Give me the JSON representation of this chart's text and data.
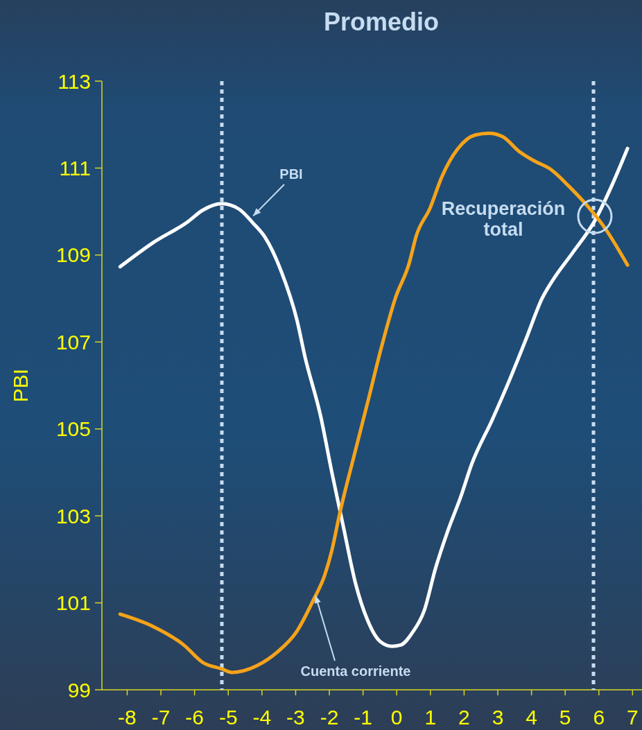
{
  "chart_data": {
    "type": "line",
    "title": "Promedio",
    "ylabel": "PBI",
    "xlim": [
      -8.75,
      7.28
    ],
    "xticks": [
      -8,
      -7,
      -6,
      -5,
      -4,
      -3,
      -2,
      -1,
      0,
      1,
      2,
      3,
      4,
      5,
      6,
      7
    ],
    "ylim": [
      99,
      113
    ],
    "yticks": [
      99,
      101,
      103,
      105,
      107,
      109,
      111,
      113
    ],
    "grid": false,
    "marker": "none",
    "line_style": "solid",
    "series": [
      {
        "color": "#ffffff",
        "x": [
          -8.21,
          -7.24,
          -6.21,
          -5.76,
          -5.19,
          -4.67,
          -4.26,
          -3.91,
          -3.44,
          -2.96,
          -2.72,
          -2.26,
          -1.93,
          -1.58,
          -1.23,
          -0.86,
          -0.49,
          -0.14,
          0.12,
          0.47,
          0.82,
          1.15,
          1.5,
          1.91,
          2.22,
          2.84,
          3.35,
          3.83,
          4.32,
          4.69,
          5.21,
          5.88,
          6.38,
          6.85
        ],
        "values": [
          108.73,
          109.28,
          109.76,
          110.03,
          110.18,
          110.05,
          109.73,
          109.41,
          108.65,
          107.5,
          106.65,
          105.3,
          104.02,
          102.74,
          101.47,
          100.59,
          100.11,
          100.0,
          100.03,
          100.32,
          100.83,
          101.79,
          102.62,
          103.46,
          104.18,
          105.22,
          106.13,
          107.05,
          108.01,
          108.49,
          109.04,
          109.79,
          110.59,
          111.45
        ]
      },
      {
        "color": "#f5a31a",
        "x": [
          -8.21,
          -7.24,
          -6.32,
          -5.76,
          -5.19,
          -4.88,
          -4.16,
          -3.54,
          -2.96,
          -2.47,
          -2.14,
          -1.93,
          -1.69,
          -1.28,
          -0.86,
          -0.45,
          -0.04,
          0.37,
          0.58,
          0.99,
          1.34,
          1.81,
          2.33,
          2.74,
          3.15,
          3.62,
          4.07,
          4.59,
          5.1,
          5.68,
          6.17,
          6.85
        ],
        "values": [
          100.74,
          100.46,
          100.03,
          99.63,
          99.48,
          99.4,
          99.55,
          99.87,
          100.35,
          101.07,
          101.63,
          102.19,
          103.06,
          104.34,
          105.62,
          106.89,
          108.01,
          108.81,
          109.44,
          110.08,
          110.8,
          111.44,
          111.76,
          111.8,
          111.72,
          111.39,
          111.17,
          110.96,
          110.59,
          110.11,
          109.63,
          108.77
        ]
      }
    ],
    "ref_lines": [
      {
        "axis": "x",
        "value": -5.19,
        "color": "#c6dcf0",
        "line_style": "dotted"
      },
      {
        "axis": "x",
        "value": 5.84,
        "color": "#c6dcf0",
        "line_style": "dotted"
      }
    ],
    "annotations": [
      {
        "text": "Recuperación total",
        "x": 5.88,
        "y": 109.89
      },
      {
        "text": "PBI",
        "x": -4.26,
        "y": 109.9
      },
      {
        "text": "Cuenta corriente",
        "x": -2.41,
        "y": 101.17
      }
    ]
  }
}
